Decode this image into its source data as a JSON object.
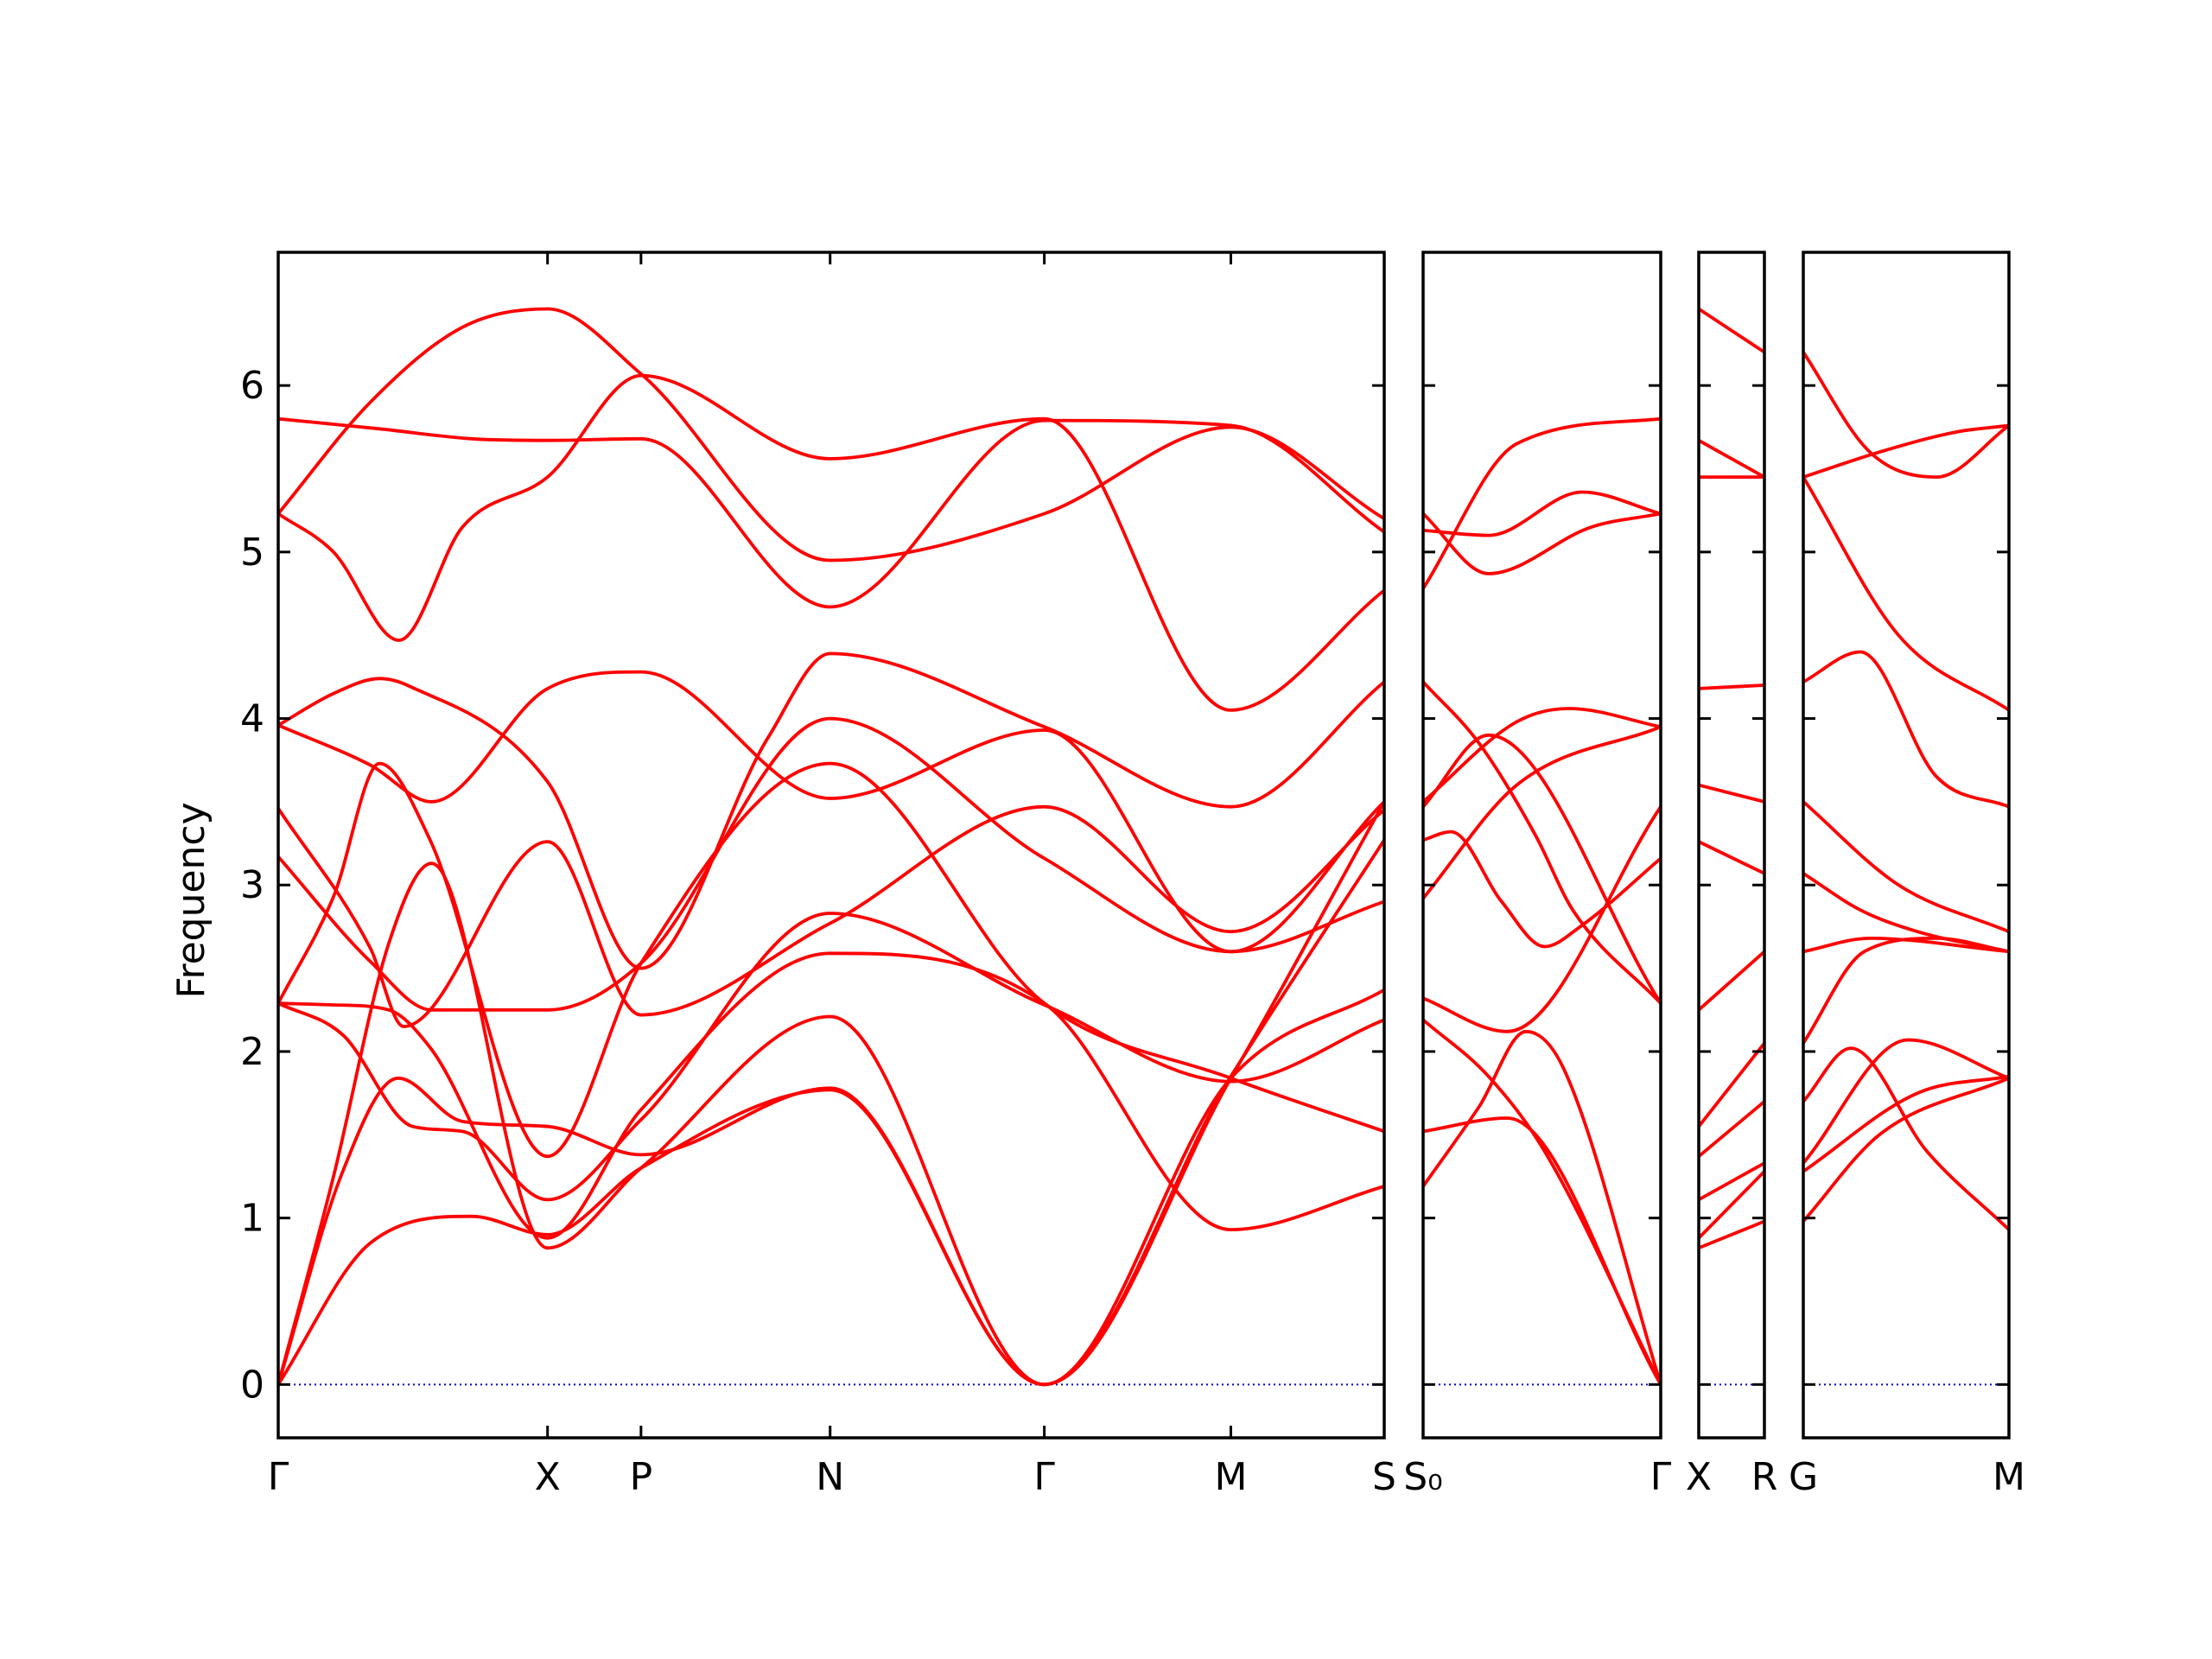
{
  "chart_data": {
    "type": "line",
    "ylabel": "Frequency",
    "ylim": [
      -0.32,
      6.8
    ],
    "yticks": [
      0,
      1,
      2,
      3,
      4,
      5,
      6
    ],
    "colors": {
      "band": "#ff0000",
      "zero_line": "#0000cc",
      "frame": "#000000"
    },
    "panels": [
      {
        "name": "panel-1",
        "xlim": [
          0,
          6
        ],
        "ticks": [
          {
            "x": 0,
            "label": "Γ"
          },
          {
            "x": 1.461,
            "label": "X"
          },
          {
            "x": 1.968,
            "label": "P"
          },
          {
            "x": 2.994,
            "label": "N"
          },
          {
            "x": 4.156,
            "label": "Γ"
          },
          {
            "x": 5.168,
            "label": "M"
          },
          {
            "x": 6,
            "label": "S"
          }
        ],
        "series": [
          {
            "x": [
              0,
              0.55,
              1.05,
              1.461,
              1.968,
              2.994,
              4.156,
              5.168,
              6
            ],
            "y": [
              5.8,
              5.74,
              5.68,
              5.67,
              5.68,
              4.67,
              5.79,
              5.76,
              5.12
            ]
          },
          {
            "x": [
              0,
              0.5,
              1.0,
              1.461,
              1.968,
              2.994,
              4.156,
              5.168,
              6
            ],
            "y": [
              5.23,
              5.9,
              6.35,
              6.46,
              6.07,
              4.95,
              5.23,
              5.75,
              5.2
            ]
          },
          {
            "x": [
              0,
              0.3,
              0.655,
              1.0,
              1.461,
              1.968,
              2.994,
              4.156,
              5.168,
              6
            ],
            "y": [
              5.23,
              5.0,
              4.47,
              5.15,
              5.45,
              6.06,
              5.56,
              5.8,
              4.05,
              4.77
            ]
          },
          {
            "x": [
              0,
              0.3,
              0.55,
              0.7,
              1.461,
              1.968,
              2.66,
              2.994,
              4.156,
              5.168,
              6
            ],
            "y": [
              3.96,
              4.15,
              4.24,
              4.2,
              3.62,
              2.5,
              3.89,
              4.39,
              3.95,
              3.47,
              4.22
            ]
          },
          {
            "x": [
              0,
              0.5,
              0.832,
              1.461,
              1.968,
              2.994,
              4.156,
              5.168,
              6
            ],
            "y": [
              3.96,
              3.72,
              3.5,
              4.18,
              4.28,
              3.52,
              3.93,
              2.6,
              3.5
            ]
          },
          {
            "x": [
              0,
              0.5,
              0.68,
              1.461,
              1.968,
              2.994,
              4.156,
              5.168,
              6
            ],
            "y": [
              3.46,
              2.62,
              2.15,
              3.26,
              2.22,
              2.77,
              3.47,
              2.72,
              3.45
            ]
          },
          {
            "x": [
              0,
              0.5,
              0.832,
              1.461,
              1.968,
              2.994,
              4.156,
              5.168,
              6
            ],
            "y": [
              3.17,
              2.54,
              2.25,
              2.25,
              2.53,
              4.0,
              3.16,
              2.6,
              2.9
            ]
          },
          {
            "x": [
              0,
              0.3,
              0.55,
              0.82,
              1.461,
              1.968,
              2.994,
              4.156,
              5.168,
              6
            ],
            "y": [
              2.29,
              2.93,
              3.73,
              3.28,
              1.37,
              2.53,
              3.73,
              2.29,
              1.84,
              1.52
            ]
          },
          {
            "x": [
              0,
              0.3,
              0.6,
              0.82,
              1.461,
              1.968,
              2.994,
              4.156,
              5.168,
              6
            ],
            "y": [
              2.29,
              2.28,
              2.25,
              2.03,
              0.88,
              1.65,
              2.59,
              2.29,
              0.93,
              1.19
            ]
          },
          {
            "x": [
              0,
              0.35,
              0.73,
              1.0,
              1.461,
              1.968,
              2.994,
              4.156,
              5.168,
              6
            ],
            "y": [
              2.29,
              2.1,
              1.55,
              1.52,
              1.11,
              1.59,
              2.83,
              2.28,
              1.82,
              2.19
            ]
          },
          {
            "x": [
              0,
              0.35,
              0.65,
              1.0,
              1.461,
              1.968,
              2.994,
              4.156,
              5.168,
              6
            ],
            "y": [
              0,
              1.28,
              1.84,
              1.58,
              1.55,
              1.38,
              1.78,
              0,
              1.84,
              2.37
            ]
          },
          {
            "x": [
              0,
              0.3,
              0.6,
              0.832,
              1.461,
              1.968,
              2.994,
              4.156,
              5.168,
              6
            ],
            "y": [
              0,
              1.25,
              2.65,
              3.13,
              0.82,
              1.3,
              2.21,
              0,
              1.85,
              3.27
            ]
          },
          {
            "x": [
              0,
              0.5,
              1.05,
              1.461,
              1.968,
              2.994,
              4.156,
              5.168,
              6
            ],
            "y": [
              0,
              0.85,
              1.01,
              0.9,
              1.3,
              1.77,
              0,
              1.84,
              3.5
            ]
          }
        ]
      },
      {
        "name": "panel-2",
        "xlim": [
          0,
          1.27
        ],
        "ticks": [
          {
            "x": 0,
            "label": "S₀"
          },
          {
            "x": 1.27,
            "label": "Γ"
          }
        ],
        "series": [
          {
            "x": [
              0,
              0.5,
              1.27
            ],
            "y": [
              4.78,
              5.65,
              5.8
            ]
          },
          {
            "x": [
              0,
              0.35,
              0.85,
              1.27
            ],
            "y": [
              5.13,
              5.1,
              5.36,
              5.23
            ]
          },
          {
            "x": [
              0,
              0.35,
              0.9,
              1.27
            ],
            "y": [
              5.23,
              4.87,
              5.15,
              5.23
            ]
          },
          {
            "x": [
              0,
              0.3,
              0.6,
              0.8,
              1.27
            ],
            "y": [
              4.22,
              3.85,
              3.3,
              2.85,
              2.29
            ]
          },
          {
            "x": [
              0,
              0.5,
              0.78,
              1.27
            ],
            "y": [
              3.5,
              3.98,
              4.06,
              3.95
            ]
          },
          {
            "x": [
              0,
              0.35,
              1.27
            ],
            "y": [
              3.47,
              3.9,
              2.29
            ]
          },
          {
            "x": [
              0,
              0.5,
              1.27
            ],
            "y": [
              2.92,
              3.6,
              3.95
            ]
          },
          {
            "x": [
              0,
              0.15,
              0.42,
              0.65,
              0.84,
              1.27
            ],
            "y": [
              3.27,
              3.32,
              2.9,
              2.63,
              2.75,
              3.16
            ]
          },
          {
            "x": [
              0,
              0.45,
              1.27
            ],
            "y": [
              2.32,
              2.12,
              3.47
            ]
          },
          {
            "x": [
              0,
              0.35,
              0.65,
              1.27
            ],
            "y": [
              2.19,
              1.85,
              1.4,
              0
            ]
          },
          {
            "x": [
              0,
              0.3,
              0.55,
              0.75,
              1.27
            ],
            "y": [
              1.19,
              1.67,
              2.12,
              1.9,
              0
            ]
          },
          {
            "x": [
              0,
              0.45,
              1.27
            ],
            "y": [
              1.52,
              1.6,
              0
            ]
          }
        ]
      },
      {
        "name": "panel-3",
        "xlim": [
          0,
          0.33
        ],
        "ticks": [
          {
            "x": 0,
            "label": "X"
          },
          {
            "x": 0.33,
            "label": "R"
          }
        ],
        "series": [
          {
            "x": [
              0,
              0.33
            ],
            "y": [
              6.46,
              6.2
            ]
          },
          {
            "x": [
              0,
              0.33
            ],
            "y": [
              5.67,
              5.45
            ]
          },
          {
            "x": [
              0,
              0.33
            ],
            "y": [
              5.45,
              5.45
            ]
          },
          {
            "x": [
              0,
              0.33
            ],
            "y": [
              4.18,
              4.2
            ]
          },
          {
            "x": [
              0,
              0.33
            ],
            "y": [
              3.6,
              3.5
            ]
          },
          {
            "x": [
              0,
              0.33
            ],
            "y": [
              3.26,
              3.07
            ]
          },
          {
            "x": [
              0,
              0.33
            ],
            "y": [
              2.25,
              2.6
            ]
          },
          {
            "x": [
              0,
              0.33
            ],
            "y": [
              1.55,
              2.05
            ]
          },
          {
            "x": [
              0,
              0.33
            ],
            "y": [
              1.37,
              1.7
            ]
          },
          {
            "x": [
              0,
              0.33
            ],
            "y": [
              1.11,
              1.33
            ]
          },
          {
            "x": [
              0,
              0.33
            ],
            "y": [
              0.88,
              1.28
            ]
          },
          {
            "x": [
              0,
              0.33
            ],
            "y": [
              0.82,
              0.98
            ]
          }
        ]
      },
      {
        "name": "panel-4",
        "xlim": [
          0,
          1.08
        ],
        "ticks": [
          {
            "x": 0,
            "label": "G"
          },
          {
            "x": 1.08,
            "label": "M"
          }
        ],
        "series": [
          {
            "x": [
              0,
              0.35,
              0.7,
              1.08
            ],
            "y": [
              6.2,
              5.6,
              5.45,
              5.76
            ]
          },
          {
            "x": [
              0,
              0.4,
              0.8,
              1.08
            ],
            "y": [
              5.45,
              5.6,
              5.72,
              5.76
            ]
          },
          {
            "x": [
              0,
              0.5,
              1.08
            ],
            "y": [
              5.45,
              4.5,
              4.05
            ]
          },
          {
            "x": [
              0,
              0.3,
              0.7,
              1.08
            ],
            "y": [
              4.22,
              4.4,
              3.65,
              3.47
            ]
          },
          {
            "x": [
              0,
              0.5,
              1.08
            ],
            "y": [
              3.5,
              3.0,
              2.72
            ]
          },
          {
            "x": [
              0,
              0.3,
              0.6,
              1.08
            ],
            "y": [
              3.07,
              2.85,
              2.72,
              2.6
            ]
          },
          {
            "x": [
              0,
              0.35,
              1.08
            ],
            "y": [
              2.6,
              2.68,
              2.6
            ]
          },
          {
            "x": [
              0,
              0.32,
              0.7,
              1.08
            ],
            "y": [
              2.05,
              2.6,
              2.68,
              2.6
            ]
          },
          {
            "x": [
              0,
              0.25,
              0.65,
              1.08
            ],
            "y": [
              1.7,
              2.02,
              1.4,
              0.93
            ]
          },
          {
            "x": [
              0,
              0.55,
              1.08
            ],
            "y": [
              1.33,
              2.07,
              1.84
            ]
          },
          {
            "x": [
              0,
              0.6,
              1.08
            ],
            "y": [
              1.28,
              1.75,
              1.85
            ]
          },
          {
            "x": [
              0,
              0.4,
              1.08
            ],
            "y": [
              0.98,
              1.5,
              1.84
            ]
          }
        ]
      }
    ]
  }
}
